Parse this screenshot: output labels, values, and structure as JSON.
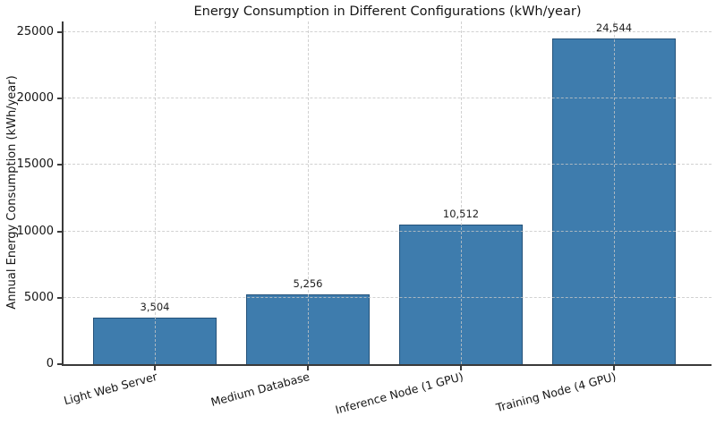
{
  "chart_data": {
    "type": "bar",
    "title": "Energy Consumption in Different Configurations (kWh/year)",
    "xlabel": "",
    "ylabel": "Annual Energy Consumption (kWh/year)",
    "categories": [
      "Light Web Server",
      "Medium Database",
      "Inference Node (1 GPU)",
      "Training Node (4 GPU)"
    ],
    "values": [
      3504,
      5256,
      10512,
      24544
    ],
    "value_labels": [
      "3,504",
      "5,256",
      "10,512",
      "24,544"
    ],
    "yticks": [
      0,
      5000,
      10000,
      15000,
      20000,
      25000
    ],
    "ylim": [
      0,
      25800
    ],
    "legend": "none",
    "grid": {
      "style": "dashed",
      "axes": "both",
      "color": "#c6c6c6"
    },
    "x_tick_rotation_deg": 15,
    "bar_color": "#3E7CAD",
    "bar_edge_color": "#24527A",
    "spine_color": "#3a3a3a"
  }
}
